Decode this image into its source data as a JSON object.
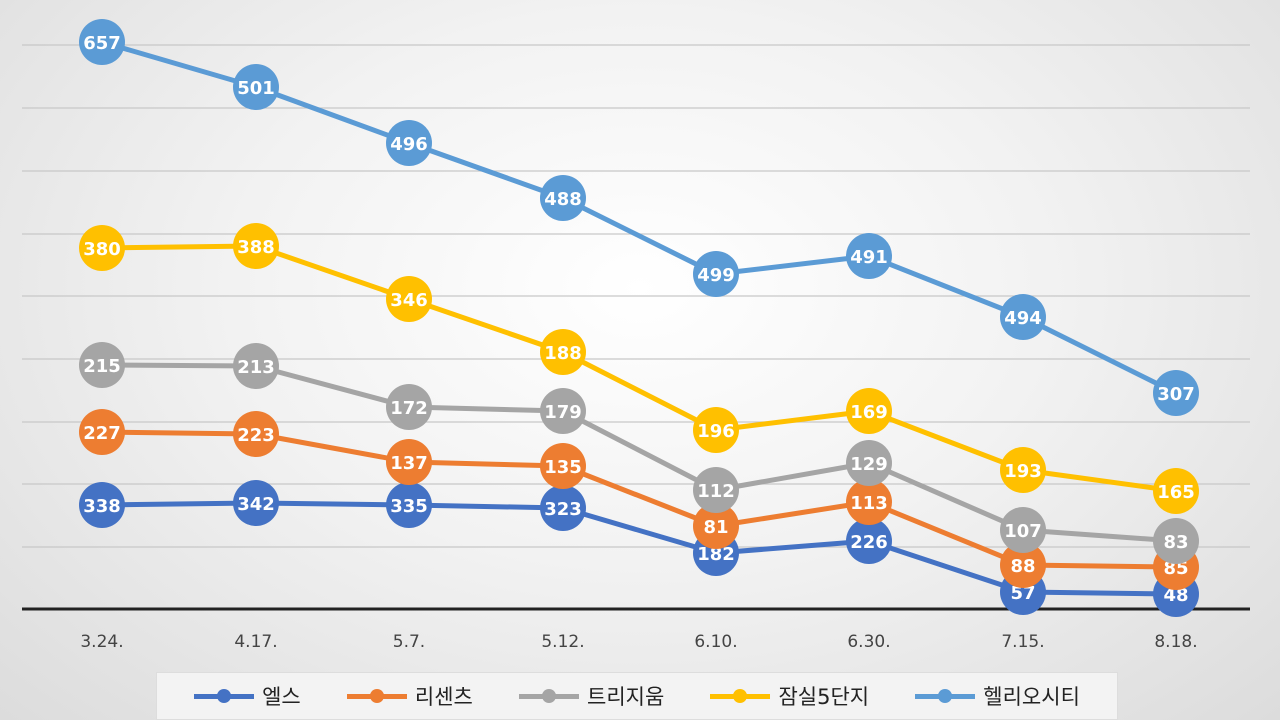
{
  "chart_data": {
    "type": "line",
    "title": "",
    "xlabel": "",
    "ylabel": "",
    "categories": [
      "3.24.",
      "4.17.",
      "5.7.",
      "5.12.",
      "6.10.",
      "6.30.",
      "7.15.",
      "8.18."
    ],
    "grid": true,
    "legend_position": "bottom",
    "note": "Series are drawn offset vertically; positions do not correspond to a shared numeric axis.",
    "series": [
      {
        "name": "엘스",
        "color": "#4472c4",
        "values": [
          338,
          342,
          335,
          323,
          182,
          226,
          57,
          48
        ]
      },
      {
        "name": "리센츠",
        "color": "#ed7d31",
        "values": [
          227,
          223,
          137,
          135,
          81,
          113,
          88,
          85
        ]
      },
      {
        "name": "트리지움",
        "color": "#a5a5a5",
        "values": [
          215,
          213,
          172,
          179,
          112,
          129,
          107,
          83
        ]
      },
      {
        "name": "잠실5단지",
        "color": "#ffc000",
        "values": [
          380,
          388,
          346,
          188,
          196,
          169,
          193,
          165
        ]
      },
      {
        "name": "헬리오시티",
        "color": "#5b9bd5",
        "values": [
          657,
          501,
          496,
          488,
          499,
          491,
          494,
          307
        ]
      }
    ]
  }
}
